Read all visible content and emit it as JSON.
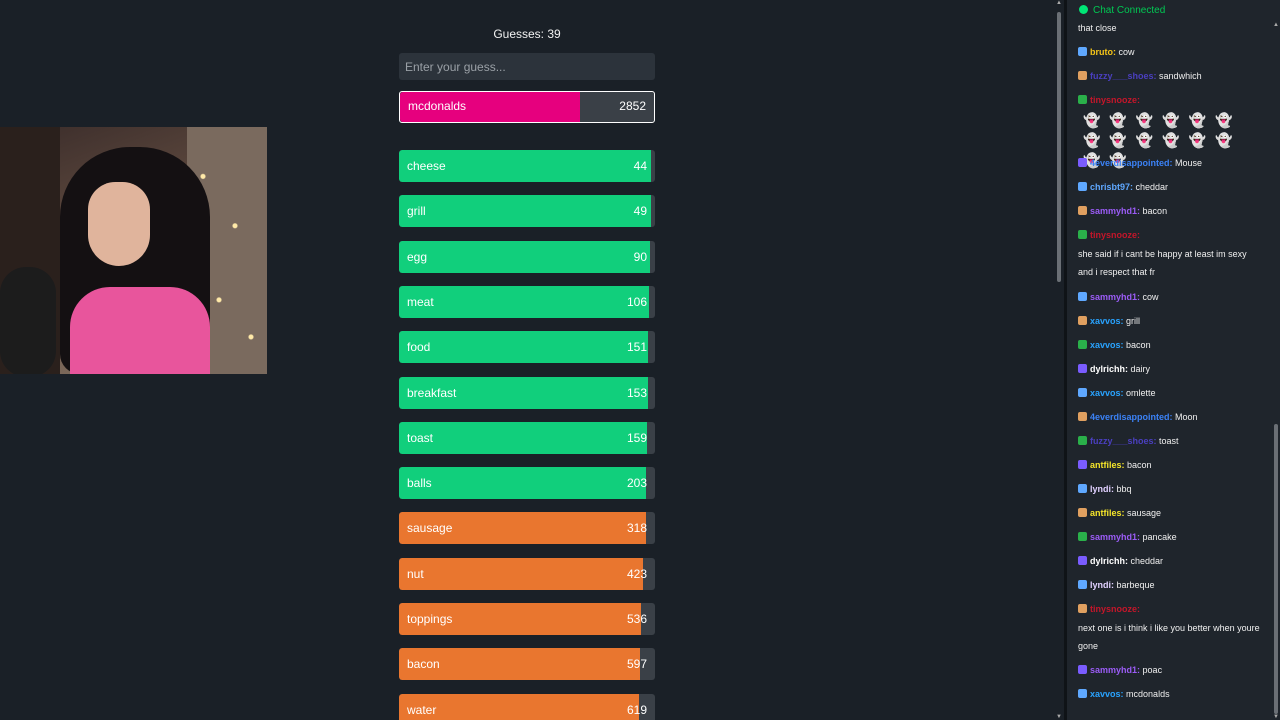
{
  "game": {
    "guess_count": "Guesses: 39",
    "input_placeholder": "Enter your guess...",
    "current": {
      "word": "mcdonalds",
      "rank": "2852",
      "color": "#e6007e",
      "fill": 0.71
    },
    "guesses": [
      {
        "word": "cheese",
        "rank": "44",
        "color": "#11cf7c",
        "fill": 0.985
      },
      {
        "word": "grill",
        "rank": "49",
        "color": "#11cf7c",
        "fill": 0.984
      },
      {
        "word": "egg",
        "rank": "90",
        "color": "#11cf7c",
        "fill": 0.98
      },
      {
        "word": "meat",
        "rank": "106",
        "color": "#11cf7c",
        "fill": 0.978
      },
      {
        "word": "food",
        "rank": "151",
        "color": "#11cf7c",
        "fill": 0.972
      },
      {
        "word": "breakfast",
        "rank": "153",
        "color": "#11cf7c",
        "fill": 0.972
      },
      {
        "word": "toast",
        "rank": "159",
        "color": "#11cf7c",
        "fill": 0.97
      },
      {
        "word": "balls",
        "rank": "203",
        "color": "#11cf7c",
        "fill": 0.965
      },
      {
        "word": "sausage",
        "rank": "318",
        "color": "#e9762f",
        "fill": 0.965
      },
      {
        "word": "nut",
        "rank": "423",
        "color": "#e9762f",
        "fill": 0.955
      },
      {
        "word": "toppings",
        "rank": "536",
        "color": "#e9762f",
        "fill": 0.945
      },
      {
        "word": "bacon",
        "rank": "597",
        "color": "#e9762f",
        "fill": 0.94
      },
      {
        "word": "water",
        "rank": "619",
        "color": "#e9762f",
        "fill": 0.938
      }
    ]
  },
  "chat": {
    "status": "Chat Connected",
    "emotes": "👻👻👻👻👻👻👻👻👻👻👻👻👻👻",
    "messages": [
      {
        "user": "",
        "text": "that close"
      },
      {
        "user": "bruto",
        "text": "cow",
        "color": "#f5c518"
      },
      {
        "user": "fuzzy___shoes",
        "text": "sandwhich",
        "color": "#4a3fbf"
      },
      {
        "user": "tinysnooze",
        "text": "",
        "color": "#c4162a"
      },
      {
        "user": "4everdisappointed",
        "text": "Mouse",
        "color": "#3b82f6"
      },
      {
        "user": "chrisbt97",
        "text": "cheddar",
        "color": "#5fa8ff"
      },
      {
        "user": "sammyhd1",
        "text": "bacon",
        "color": "#9b5cf6"
      },
      {
        "user": "tinysnooze",
        "text": "",
        "color": "#c4162a"
      },
      {
        "user": "",
        "text": "she said if i cant be happy at least im sexy and i respect that fr"
      },
      {
        "user": "sammyhd1",
        "text": "cow",
        "color": "#9b5cf6"
      },
      {
        "user": "xavvos",
        "text": "grill",
        "color": "#29a3ff"
      },
      {
        "user": "xavvos",
        "text": "bacon",
        "color": "#29a3ff"
      },
      {
        "user": "dylrichh",
        "text": "dairy",
        "color": "#ffffff"
      },
      {
        "user": "xavvos",
        "text": "omlette",
        "color": "#29a3ff"
      },
      {
        "user": "4everdisappointed",
        "text": "Moon",
        "color": "#3b82f6"
      },
      {
        "user": "fuzzy___shoes",
        "text": "toast",
        "color": "#4a3fbf"
      },
      {
        "user": "antfiles",
        "text": "bacon",
        "color": "#f5e52a"
      },
      {
        "user": "lyndi",
        "text": "bbq",
        "color": "#e0d0ff"
      },
      {
        "user": "antfiles",
        "text": "sausage",
        "color": "#f5e52a"
      },
      {
        "user": "sammyhd1",
        "text": "pancake",
        "color": "#9b5cf6"
      },
      {
        "user": "dylrichh",
        "text": "cheddar",
        "color": "#ffffff"
      },
      {
        "user": "lyndi",
        "text": "barbeque",
        "color": "#e0d0ff"
      },
      {
        "user": "tinysnooze",
        "text": "",
        "color": "#c4162a"
      },
      {
        "user": "",
        "text": "next one is i think i like you better when youre gone"
      },
      {
        "user": "sammyhd1",
        "text": "poac",
        "color": "#9b5cf6"
      },
      {
        "user": "xavvos",
        "text": "mcdonalds",
        "color": "#29a3ff"
      }
    ]
  }
}
